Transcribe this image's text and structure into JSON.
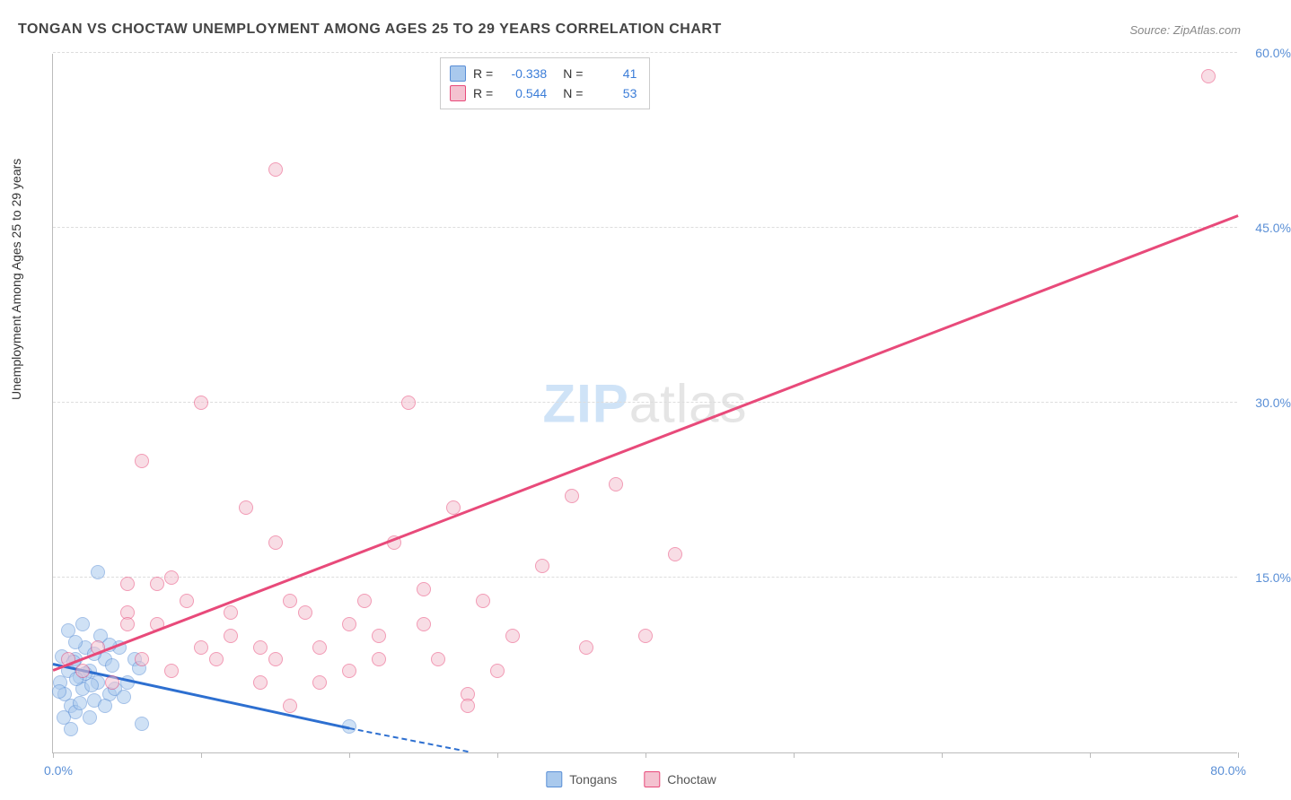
{
  "title": "TONGAN VS CHOCTAW UNEMPLOYMENT AMONG AGES 25 TO 29 YEARS CORRELATION CHART",
  "source_label": "Source: ZipAtlas.com",
  "watermark": {
    "part1": "ZIP",
    "part2": "atlas"
  },
  "yaxis_title": "Unemployment Among Ages 25 to 29 years",
  "chart": {
    "type": "scatter",
    "xlim": [
      0,
      80
    ],
    "ylim": [
      0,
      60
    ],
    "background_color": "#ffffff",
    "grid_color": "#dddddd",
    "xlabel_min": "0.0%",
    "xlabel_max": "80.0%",
    "xtick_positions": [
      0,
      10,
      20,
      30,
      40,
      50,
      60,
      70,
      80
    ],
    "ytick_positions": [
      15,
      30,
      45,
      60
    ],
    "ytick_labels": [
      "15.0%",
      "30.0%",
      "45.0%",
      "60.0%"
    ],
    "ytick_color": "#5a8fd6",
    "xlabel_color": "#5a8fd6",
    "series": [
      {
        "name": "Tongans",
        "legend_label": "Tongans",
        "color_fill": "#a9c9ed",
        "color_border": "#5a8fd6",
        "regression": {
          "r": "-0.338",
          "n": "41",
          "x1": 0,
          "y1": 7.5,
          "x2": 20,
          "y2": 2.0,
          "dash_extend_x2": 28,
          "dash_extend_y2": 0,
          "line_color": "#2d6fd0"
        },
        "points": [
          [
            0.5,
            6
          ],
          [
            0.8,
            5
          ],
          [
            1,
            7
          ],
          [
            1.2,
            4
          ],
          [
            1.5,
            8
          ],
          [
            1.8,
            6.5
          ],
          [
            2,
            5.5
          ],
          [
            2.2,
            9
          ],
          [
            2.5,
            7
          ],
          [
            2.8,
            4.5
          ],
          [
            3,
            6
          ],
          [
            3.2,
            10
          ],
          [
            3.5,
            8
          ],
          [
            3.8,
            5
          ],
          [
            1.5,
            3.5
          ],
          [
            2,
            11
          ],
          [
            2.5,
            3
          ],
          [
            4,
            7.5
          ],
          [
            4.5,
            9
          ],
          [
            5,
            6
          ],
          [
            1.2,
            2
          ],
          [
            0.7,
            3
          ],
          [
            1.5,
            9.5
          ],
          [
            2.8,
            8.5
          ],
          [
            3.5,
            4
          ],
          [
            1,
            10.5
          ],
          [
            4.2,
            5.5
          ],
          [
            5.5,
            8
          ],
          [
            6,
            2.5
          ],
          [
            3,
            15.5
          ],
          [
            2.2,
            6.8
          ],
          [
            1.8,
            4.2
          ],
          [
            0.6,
            8.2
          ],
          [
            5.8,
            7.2
          ],
          [
            4.8,
            4.8
          ],
          [
            1.4,
            7.8
          ],
          [
            2.6,
            5.8
          ],
          [
            20,
            2.2
          ],
          [
            3.8,
            9.2
          ],
          [
            0.4,
            5.2
          ],
          [
            1.6,
            6.3
          ]
        ]
      },
      {
        "name": "Choctaw",
        "legend_label": "Choctaw",
        "color_fill": "#f4c2d0",
        "color_border": "#e84a7a",
        "regression": {
          "r": "0.544",
          "n": "53",
          "x1": 0,
          "y1": 7,
          "x2": 80,
          "y2": 46,
          "line_color": "#e84a7a"
        },
        "points": [
          [
            1,
            8
          ],
          [
            2,
            7
          ],
          [
            3,
            9
          ],
          [
            4,
            6
          ],
          [
            5,
            12
          ],
          [
            6,
            8
          ],
          [
            7,
            14.5
          ],
          [
            5,
            11
          ],
          [
            8,
            7
          ],
          [
            9,
            13
          ],
          [
            10,
            9
          ],
          [
            11,
            8
          ],
          [
            12,
            10
          ],
          [
            6,
            25
          ],
          [
            8,
            15
          ],
          [
            10,
            30
          ],
          [
            14,
            6
          ],
          [
            15,
            8
          ],
          [
            16,
            4
          ],
          [
            17,
            12
          ],
          [
            13,
            21
          ],
          [
            15,
            18
          ],
          [
            18,
            9
          ],
          [
            5,
            14.5
          ],
          [
            7,
            11
          ],
          [
            20,
            7
          ],
          [
            21,
            13
          ],
          [
            22,
            10
          ],
          [
            24,
            30
          ],
          [
            25,
            11
          ],
          [
            26,
            8
          ],
          [
            27,
            21
          ],
          [
            28,
            5
          ],
          [
            23,
            18
          ],
          [
            25,
            14
          ],
          [
            29,
            13
          ],
          [
            30,
            7
          ],
          [
            31,
            10
          ],
          [
            33,
            16
          ],
          [
            35,
            22
          ],
          [
            36,
            9
          ],
          [
            38,
            23
          ],
          [
            40,
            10
          ],
          [
            42,
            17
          ],
          [
            28,
            4
          ],
          [
            15,
            50
          ],
          [
            12,
            12
          ],
          [
            14,
            9
          ],
          [
            18,
            6
          ],
          [
            20,
            11
          ],
          [
            22,
            8
          ],
          [
            16,
            13
          ],
          [
            78,
            58
          ]
        ]
      }
    ]
  }
}
